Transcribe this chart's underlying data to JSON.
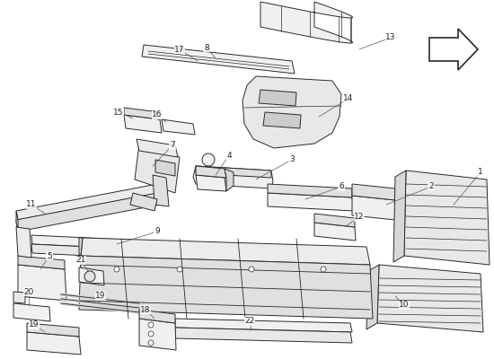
{
  "background_color": "#ffffff",
  "line_color": "#2a2a2a",
  "line_width": 0.7,
  "label_fontsize": 6.5,
  "label_color": "#222222",
  "figsize": [
    5.5,
    4.0
  ],
  "dpi": 100,
  "xlim": [
    0,
    550
  ],
  "ylim": [
    0,
    400
  ]
}
